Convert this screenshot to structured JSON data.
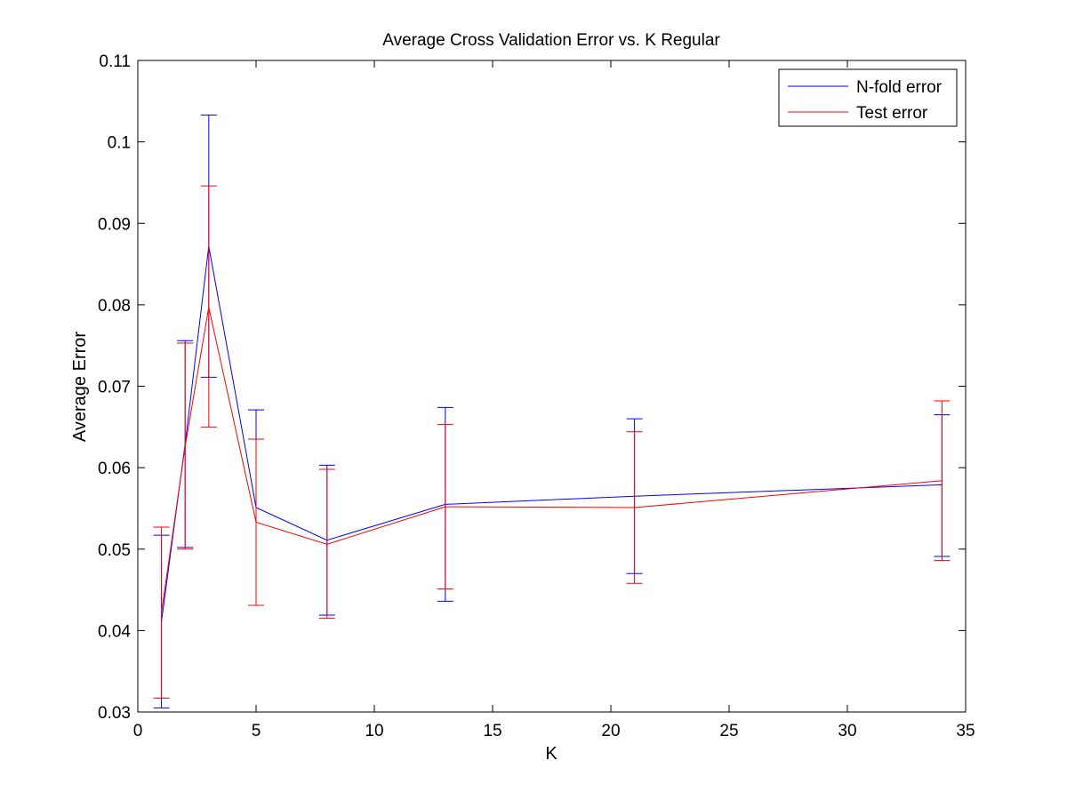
{
  "chart_data": {
    "type": "line",
    "title": "Average Cross Validation Error vs. K Regular",
    "xlabel": "K",
    "ylabel": "Average Error",
    "xlim": [
      0,
      35
    ],
    "ylim": [
      0.03,
      0.11
    ],
    "xticks": [
      "0",
      "5",
      "10",
      "15",
      "20",
      "25",
      "30",
      "35"
    ],
    "yticks": [
      "0.03",
      "0.04",
      "0.05",
      "0.06",
      "0.07",
      "0.08",
      "0.09",
      "0.1",
      "0.11"
    ],
    "grid": false,
    "legend_position": "top-right",
    "error_bars": true,
    "series": [
      {
        "name": "N-fold error",
        "color": "#0000ff",
        "x": [
          1,
          2,
          3,
          5,
          8,
          13,
          21,
          34
        ],
        "y": [
          0.0411,
          0.0629,
          0.0872,
          0.0551,
          0.0511,
          0.0555,
          0.0565,
          0.0579
        ],
        "lower": [
          0.0305,
          0.0502,
          0.0711,
          0.0431,
          0.0419,
          0.0436,
          0.047,
          0.0491
        ],
        "upper": [
          0.0517,
          0.0756,
          0.1033,
          0.0671,
          0.0603,
          0.0674,
          0.066,
          0.0665
        ]
      },
      {
        "name": "Test error",
        "color": "#ff0000",
        "x": [
          1,
          2,
          3,
          5,
          8,
          13,
          21,
          34
        ],
        "y": [
          0.0422,
          0.0626,
          0.0797,
          0.0533,
          0.0506,
          0.0552,
          0.0551,
          0.0584
        ],
        "lower": [
          0.0317,
          0.05,
          0.065,
          0.0431,
          0.0415,
          0.0451,
          0.0458,
          0.0486
        ],
        "upper": [
          0.0527,
          0.0753,
          0.0946,
          0.0635,
          0.0598,
          0.0653,
          0.0644,
          0.0682
        ]
      }
    ]
  }
}
